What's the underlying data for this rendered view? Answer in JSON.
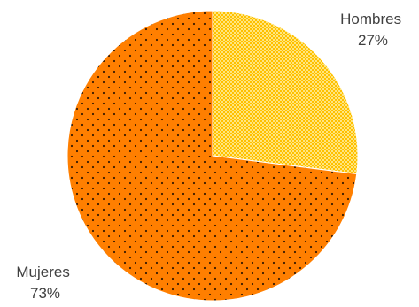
{
  "chart_data": {
    "type": "pie",
    "slices": [
      {
        "label": "Hombres",
        "value": 27,
        "value_label": "27%",
        "color": "#FFC000",
        "pattern": "fine-checker"
      },
      {
        "label": "Mujeres",
        "value": 73,
        "value_label": "73%",
        "color": "#FF7F00",
        "pattern": "dots"
      }
    ],
    "start_angle_deg": 0,
    "direction": "clockwise",
    "legend": "none",
    "grid": false,
    "data_labels": "outside"
  }
}
